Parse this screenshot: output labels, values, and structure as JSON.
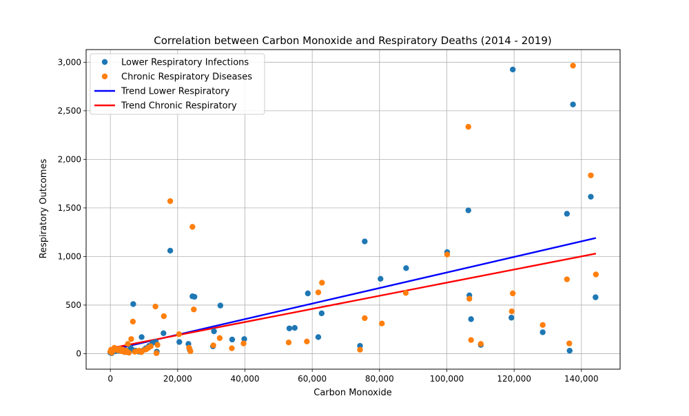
{
  "chart_data": {
    "type": "scatter",
    "title": "Correlation between Carbon Monoxide and Respiratory Deaths (2014 - 2019)",
    "xlabel": "Carbon Monoxide",
    "ylabel": "Respiratory Outcomes",
    "xlim": [
      -7200,
      151500
    ],
    "ylim": [
      -160,
      3130
    ],
    "xticks": [
      0,
      20000,
      40000,
      60000,
      80000,
      100000,
      120000,
      140000
    ],
    "xtick_labels": [
      "0",
      "20,000",
      "40,000",
      "60,000",
      "80,000",
      "100,000",
      "120,000",
      "140,000"
    ],
    "yticks": [
      0,
      500,
      1000,
      1500,
      2000,
      2500,
      3000
    ],
    "ytick_labels": [
      "0",
      "500",
      "1,000",
      "1,500",
      "2,000",
      "2,500",
      "3,000"
    ],
    "grid": true,
    "legend_position": "top-left",
    "series": [
      {
        "name": "Lower Respiratory Infections",
        "kind": "scatter",
        "color": "#1f77b4",
        "points": [
          [
            0,
            10
          ],
          [
            200,
            30
          ],
          [
            400,
            5
          ],
          [
            700,
            20
          ],
          [
            1000,
            35
          ],
          [
            1500,
            25
          ],
          [
            2000,
            40
          ],
          [
            2500,
            30
          ],
          [
            3000,
            45
          ],
          [
            3500,
            30
          ],
          [
            4000,
            20
          ],
          [
            4500,
            35
          ],
          [
            5000,
            15
          ],
          [
            5500,
            25
          ],
          [
            6000,
            60
          ],
          [
            6500,
            40
          ],
          [
            6800,
            510
          ],
          [
            7500,
            30
          ],
          [
            8500,
            20
          ],
          [
            9300,
            170
          ],
          [
            10000,
            40
          ],
          [
            10500,
            55
          ],
          [
            11500,
            80
          ],
          [
            12500,
            110
          ],
          [
            13500,
            120
          ],
          [
            13800,
            20
          ],
          [
            15800,
            210
          ],
          [
            17800,
            1060
          ],
          [
            20500,
            120
          ],
          [
            23200,
            100
          ],
          [
            23600,
            40
          ],
          [
            24400,
            590
          ],
          [
            25000,
            585
          ],
          [
            30500,
            75
          ],
          [
            30800,
            230
          ],
          [
            32700,
            495
          ],
          [
            36200,
            145
          ],
          [
            39800,
            150
          ],
          [
            53200,
            260
          ],
          [
            54800,
            265
          ],
          [
            58700,
            620
          ],
          [
            61800,
            170
          ],
          [
            62800,
            415
          ],
          [
            74200,
            80
          ],
          [
            75600,
            1155
          ],
          [
            80300,
            770
          ],
          [
            87900,
            880
          ],
          [
            100100,
            1045
          ],
          [
            106400,
            1475
          ],
          [
            106700,
            600
          ],
          [
            107200,
            355
          ],
          [
            110100,
            90
          ],
          [
            119200,
            370
          ],
          [
            119600,
            2925
          ],
          [
            128500,
            220
          ],
          [
            135700,
            1440
          ],
          [
            136500,
            30
          ],
          [
            137500,
            2565
          ],
          [
            142800,
            1615
          ],
          [
            144200,
            580
          ]
        ]
      },
      {
        "name": "Chronic Respiratory Diseases",
        "kind": "scatter",
        "color": "#ff7f0e",
        "points": [
          [
            0,
            20
          ],
          [
            200,
            40
          ],
          [
            400,
            10
          ],
          [
            800,
            30
          ],
          [
            1200,
            60
          ],
          [
            1600,
            45
          ],
          [
            2200,
            35
          ],
          [
            2800,
            50
          ],
          [
            3300,
            25
          ],
          [
            3800,
            40
          ],
          [
            4300,
            15
          ],
          [
            4700,
            30
          ],
          [
            5200,
            100
          ],
          [
            5500,
            10
          ],
          [
            6200,
            150
          ],
          [
            6700,
            330
          ],
          [
            7300,
            20
          ],
          [
            8000,
            25
          ],
          [
            8600,
            30
          ],
          [
            9200,
            15
          ],
          [
            10200,
            40
          ],
          [
            10700,
            45
          ],
          [
            11300,
            60
          ],
          [
            12000,
            75
          ],
          [
            13400,
            485
          ],
          [
            13700,
            5
          ],
          [
            14000,
            90
          ],
          [
            15900,
            385
          ],
          [
            17800,
            1570
          ],
          [
            20400,
            200
          ],
          [
            23400,
            60
          ],
          [
            23800,
            25
          ],
          [
            24400,
            1305
          ],
          [
            24800,
            455
          ],
          [
            30600,
            85
          ],
          [
            32500,
            160
          ],
          [
            36100,
            55
          ],
          [
            39600,
            105
          ],
          [
            53000,
            115
          ],
          [
            58400,
            125
          ],
          [
            61800,
            630
          ],
          [
            62900,
            730
          ],
          [
            74200,
            40
          ],
          [
            75600,
            365
          ],
          [
            80700,
            310
          ],
          [
            87800,
            625
          ],
          [
            100100,
            1020
          ],
          [
            106400,
            2335
          ],
          [
            106700,
            565
          ],
          [
            107200,
            140
          ],
          [
            110100,
            100
          ],
          [
            119300,
            435
          ],
          [
            119600,
            620
          ],
          [
            128500,
            295
          ],
          [
            135700,
            765
          ],
          [
            136400,
            105
          ],
          [
            137500,
            2965
          ],
          [
            142800,
            1835
          ],
          [
            144300,
            815
          ]
        ]
      },
      {
        "name": "Trend Lower Respiratory",
        "kind": "line",
        "color": "#0000ff",
        "x": [
          0,
          144300
        ],
        "y": [
          35,
          1190
        ]
      },
      {
        "name": "Trend Chronic Respiratory",
        "kind": "line",
        "color": "#ff0000",
        "x": [
          0,
          144300
        ],
        "y": [
          55,
          1030
        ]
      }
    ]
  }
}
